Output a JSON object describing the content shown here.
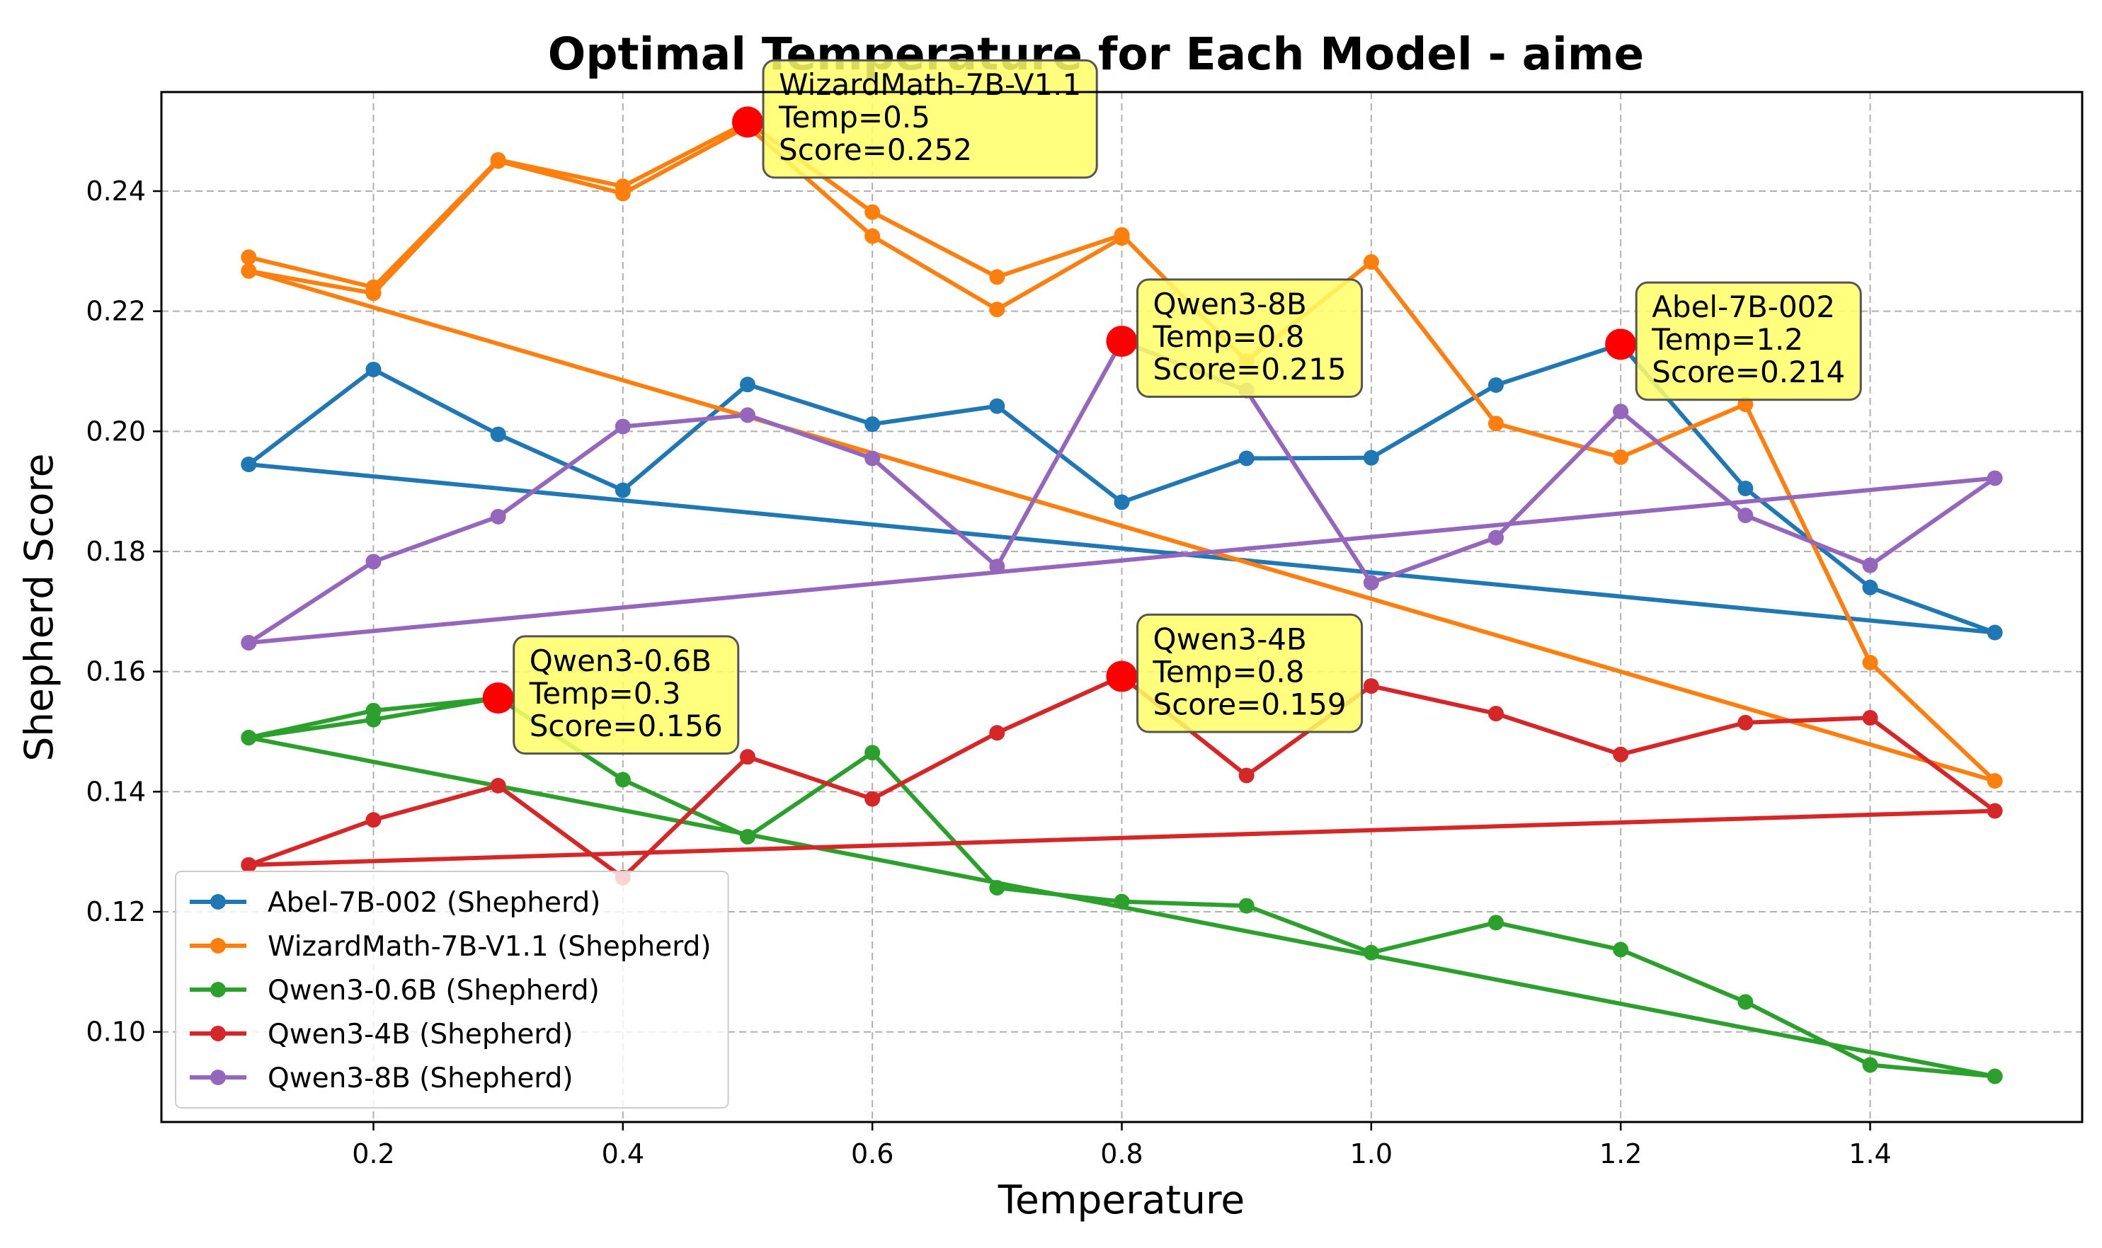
{
  "chart_data": {
    "type": "line",
    "title": "Optimal Temperature for Each Model - aime",
    "xlabel": "Temperature",
    "ylabel": "Shepherd Score",
    "xlim": [
      0.03,
      1.57
    ],
    "ylim": [
      0.085,
      0.2565
    ],
    "xticks": [
      0.2,
      0.4,
      0.6,
      0.8,
      1.0,
      1.2,
      1.4
    ],
    "xtick_labels": [
      "0.2",
      "0.4",
      "0.6",
      "0.8",
      "1.0",
      "1.2",
      "1.4"
    ],
    "yticks": [
      0.1,
      0.12,
      0.14,
      0.16,
      0.18,
      0.2,
      0.22,
      0.24
    ],
    "ytick_labels": [
      "0.10",
      "0.12",
      "0.14",
      "0.16",
      "0.18",
      "0.20",
      "0.22",
      "0.24"
    ],
    "grid": true,
    "legend_position": "lower-left",
    "series": [
      {
        "name": "Abel-7B-002 (Shepherd)",
        "color": "#1f77b4",
        "points": [
          [
            0.1,
            0.1945
          ],
          [
            0.2,
            0.2103
          ],
          [
            0.3,
            0.1995
          ],
          [
            0.4,
            0.1902
          ],
          [
            0.5,
            0.2078
          ],
          [
            0.6,
            0.2012
          ],
          [
            0.7,
            0.2042
          ],
          [
            0.8,
            0.1882
          ],
          [
            0.9,
            0.1955
          ],
          [
            1.0,
            0.1956
          ],
          [
            1.1,
            0.2077
          ],
          [
            1.2,
            0.2145
          ],
          [
            1.3,
            0.1905
          ],
          [
            1.4,
            0.174
          ],
          [
            1.5,
            0.1665
          ],
          [
            0.1,
            0.1945
          ]
        ]
      },
      {
        "name": "WizardMath-7B-V1.1 (Shepherd)",
        "color": "#ff7f0e",
        "points": [
          [
            0.1,
            0.229
          ],
          [
            0.2,
            0.224
          ],
          [
            0.3,
            0.2452
          ],
          [
            0.4,
            0.2408
          ],
          [
            0.5,
            0.2515
          ],
          [
            0.6,
            0.2365
          ],
          [
            0.7,
            0.2257
          ],
          [
            0.8,
            0.2327
          ],
          [
            0.9,
            0.2117
          ],
          [
            1.0,
            0.2282
          ],
          [
            1.1,
            0.2013
          ],
          [
            1.2,
            0.1957
          ],
          [
            1.3,
            0.2045
          ],
          [
            1.4,
            0.1615
          ],
          [
            1.5,
            0.1418
          ],
          [
            0.1,
            0.2267
          ],
          [
            0.2,
            0.223
          ],
          [
            0.3,
            0.245
          ],
          [
            0.4,
            0.2396
          ],
          [
            0.5,
            0.2508
          ],
          [
            0.6,
            0.2325
          ],
          [
            0.7,
            0.2203
          ],
          [
            0.8,
            0.2322
          ]
        ]
      },
      {
        "name": "Qwen3-0.6B (Shepherd)",
        "color": "#2ca02c",
        "points": [
          [
            0.1,
            0.149
          ],
          [
            0.2,
            0.1535
          ],
          [
            0.3,
            0.1556
          ],
          [
            0.4,
            0.142
          ],
          [
            0.5,
            0.1325
          ],
          [
            0.6,
            0.1465
          ],
          [
            0.7,
            0.124
          ],
          [
            0.8,
            0.1217
          ],
          [
            0.9,
            0.121
          ],
          [
            1.0,
            0.1132
          ],
          [
            1.1,
            0.1182
          ],
          [
            1.2,
            0.1137
          ],
          [
            1.3,
            0.105
          ],
          [
            1.4,
            0.0945
          ],
          [
            1.5,
            0.0926
          ],
          [
            0.1,
            0.149
          ],
          [
            0.2,
            0.152
          ],
          [
            0.3,
            0.1556
          ]
        ]
      },
      {
        "name": "Qwen3-4B (Shepherd)",
        "color": "#d62728",
        "points": [
          [
            0.1,
            0.1278
          ],
          [
            0.2,
            0.1353
          ],
          [
            0.3,
            0.141
          ],
          [
            0.4,
            0.1257
          ],
          [
            0.5,
            0.1458
          ],
          [
            0.6,
            0.1388
          ],
          [
            0.7,
            0.1498
          ],
          [
            0.8,
            0.1592
          ],
          [
            0.9,
            0.1427
          ],
          [
            1.0,
            0.1576
          ],
          [
            1.1,
            0.153
          ],
          [
            1.2,
            0.1462
          ],
          [
            1.3,
            0.1515
          ],
          [
            1.4,
            0.1523
          ],
          [
            1.5,
            0.1368
          ],
          [
            0.1,
            0.1278
          ]
        ]
      },
      {
        "name": "Qwen3-8B (Shepherd)",
        "color": "#9467bd",
        "points": [
          [
            0.1,
            0.1648
          ],
          [
            0.2,
            0.1783
          ],
          [
            0.3,
            0.1858
          ],
          [
            0.4,
            0.2008
          ],
          [
            0.5,
            0.2027
          ],
          [
            0.6,
            0.1955
          ],
          [
            0.7,
            0.1775
          ],
          [
            0.8,
            0.215
          ],
          [
            0.9,
            0.2068
          ],
          [
            1.0,
            0.1748
          ],
          [
            1.1,
            0.1823
          ],
          [
            1.2,
            0.2033
          ],
          [
            1.3,
            0.186
          ],
          [
            1.4,
            0.1777
          ],
          [
            1.5,
            0.1922
          ],
          [
            0.1,
            0.1648
          ]
        ]
      }
    ],
    "optimal_points": [
      {
        "model": "WizardMath-7B-V1.1",
        "x": 0.5,
        "y": 0.2515,
        "lines": [
          "WizardMath-7B-V1.1",
          "Temp=0.5",
          "Score=0.252"
        ],
        "text_dx": 0.025,
        "text_dy": 0.0045
      },
      {
        "model": "Qwen3-8B",
        "x": 0.8,
        "y": 0.215,
        "lines": [
          "Qwen3-8B",
          "Temp=0.8",
          "Score=0.215"
        ],
        "text_dx": 0.025,
        "text_dy": 0.0045
      },
      {
        "model": "Abel-7B-002",
        "x": 1.2,
        "y": 0.2145,
        "lines": [
          "Abel-7B-002",
          "Temp=1.2",
          "Score=0.214"
        ],
        "text_dx": 0.025,
        "text_dy": 0.0045
      },
      {
        "model": "Qwen3-0.6B",
        "x": 0.3,
        "y": 0.1556,
        "lines": [
          "Qwen3-0.6B",
          "Temp=0.3",
          "Score=0.156"
        ],
        "text_dx": 0.025,
        "text_dy": 0.0045
      },
      {
        "model": "Qwen3-4B",
        "x": 0.8,
        "y": 0.1592,
        "lines": [
          "Qwen3-4B",
          "Temp=0.8",
          "Score=0.159"
        ],
        "text_dx": 0.025,
        "text_dy": 0.0045
      }
    ],
    "highlight_color": "#ff0000",
    "annotation_bg": "#ffff66"
  }
}
